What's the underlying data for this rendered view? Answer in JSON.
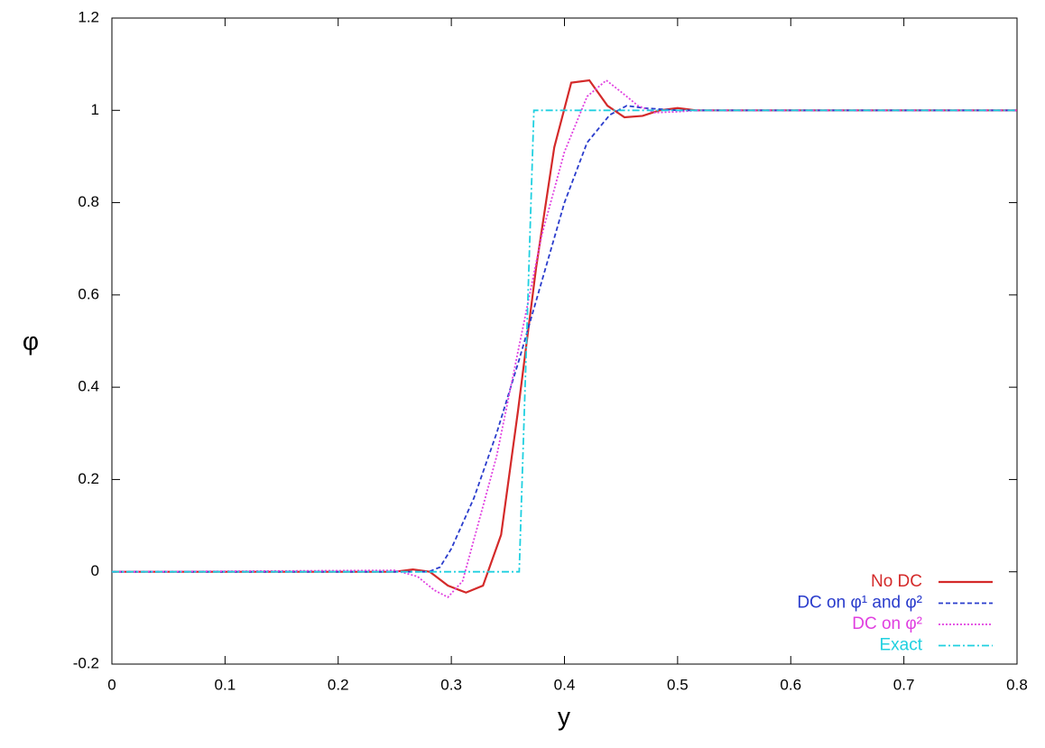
{
  "chart_data": {
    "type": "line",
    "xlabel": "y",
    "ylabel": "φ",
    "xlim": [
      0,
      0.8
    ],
    "ylim": [
      -0.2,
      1.2
    ],
    "xticks": [
      0,
      0.1,
      0.2,
      0.3,
      0.4,
      0.5,
      0.6,
      0.7,
      0.8
    ],
    "yticks": [
      -0.2,
      0,
      0.2,
      0.4,
      0.6,
      0.8,
      1,
      1.2
    ],
    "grid": false,
    "legend": "lower right",
    "series": [
      {
        "name": "No DC",
        "color": "#d42a2a",
        "dash": "solid",
        "x": [
          0,
          0.25,
          0.266,
          0.281,
          0.297,
          0.313,
          0.328,
          0.344,
          0.359,
          0.375,
          0.391,
          0.406,
          0.422,
          0.438,
          0.453,
          0.469,
          0.484,
          0.5,
          0.516,
          0.531,
          0.8
        ],
        "values": [
          0,
          0,
          0.005,
          0,
          -0.03,
          -0.045,
          -0.03,
          0.08,
          0.35,
          0.66,
          0.92,
          1.06,
          1.065,
          1.01,
          0.985,
          0.988,
          1.0,
          1.005,
          1.0,
          1.0,
          1
        ]
      },
      {
        "name": "DC on φ¹ and φ²",
        "color": "#2a3ccc",
        "dash": "dashed",
        "x": [
          0,
          0.28,
          0.29,
          0.3,
          0.32,
          0.34,
          0.36,
          0.38,
          0.4,
          0.42,
          0.44,
          0.455,
          0.47,
          0.5,
          0.8
        ],
        "values": [
          0,
          0,
          0.01,
          0.05,
          0.16,
          0.3,
          0.46,
          0.63,
          0.8,
          0.93,
          0.99,
          1.01,
          1.005,
          1,
          1
        ]
      },
      {
        "name": "DC on φ²",
        "color": "#e040e0",
        "dash": "dotted",
        "x": [
          0,
          0.25,
          0.27,
          0.285,
          0.297,
          0.31,
          0.32,
          0.34,
          0.36,
          0.38,
          0.4,
          0.42,
          0.437,
          0.45,
          0.465,
          0.48,
          0.5,
          0.52,
          0.8
        ],
        "values": [
          0,
          0.003,
          -0.01,
          -0.04,
          -0.055,
          -0.02,
          0.07,
          0.25,
          0.49,
          0.73,
          0.91,
          1.03,
          1.065,
          1.04,
          1.01,
          0.995,
          0.997,
          1,
          1
        ]
      },
      {
        "name": "Exact",
        "color": "#20d0e0",
        "dash": "dashdot",
        "x": [
          0,
          0.36,
          0.373,
          0.8
        ],
        "values": [
          0,
          0,
          1,
          1
        ]
      }
    ]
  }
}
